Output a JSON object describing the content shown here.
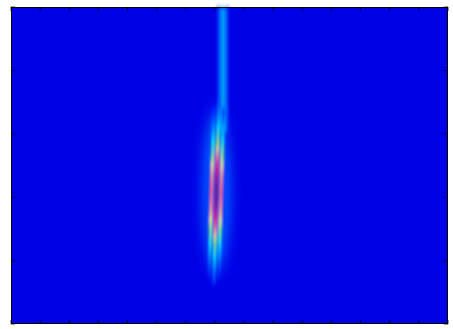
{
  "chart_data": {
    "type": "heatmap",
    "title": "",
    "xlabel": "",
    "ylabel": "",
    "colormap": "jet",
    "colormap_stops": [
      "#00007f",
      "#0000ff",
      "#00ffff",
      "#7fff7f",
      "#ffff00",
      "#ff0000",
      "#7f0000"
    ],
    "value_range": [
      0,
      1
    ],
    "background_value": 0.1,
    "features": [
      {
        "kind": "elongated-vertical-peak",
        "x_center": 0.47,
        "y_center": 0.58,
        "x_halfwidth": 0.012,
        "y_halfheight": 0.28,
        "peak_value": 1.0,
        "fringe_period": 0.006
      },
      {
        "kind": "faint-vertical-streak",
        "x_center": 0.485,
        "y_from": 0.0,
        "y_to": 0.3,
        "peak_value": 0.35
      }
    ],
    "axis_ticks_visible": true,
    "tick_labels": []
  }
}
